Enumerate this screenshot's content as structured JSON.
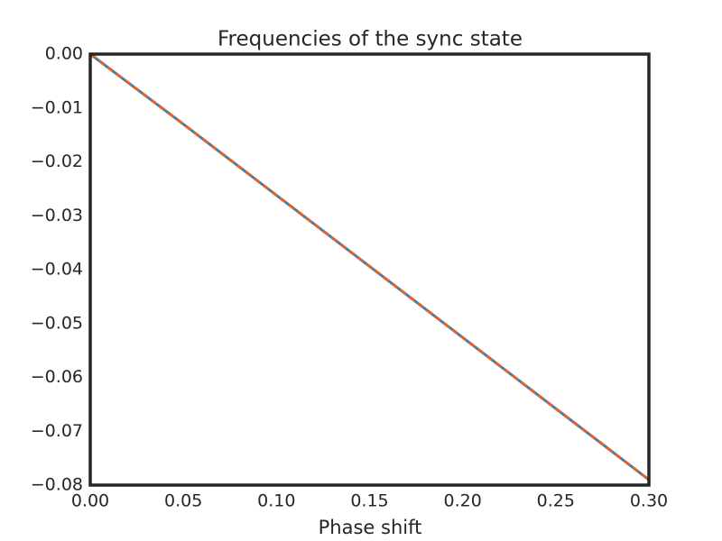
{
  "chart_data": {
    "type": "line",
    "title": "Frequencies of the sync state",
    "xlabel": "Phase shift",
    "x": [
      0,
      0.05,
      0.1,
      0.15,
      0.2,
      0.25,
      0.3
    ],
    "series": [
      {
        "color": "#2a87bd",
        "linestyle": "solid",
        "values": [
          0,
          -0.013,
          -0.0262,
          -0.0394,
          -0.0526,
          -0.0658,
          -0.079
        ]
      },
      {
        "color": "#e5602a",
        "linestyle": "dashed",
        "values": [
          0,
          -0.013,
          -0.0262,
          -0.0394,
          -0.0526,
          -0.0658,
          -0.079
        ]
      }
    ],
    "xlim": [
      0,
      0.3
    ],
    "xticks": [
      {
        "value": 0,
        "label": "0.00"
      },
      0.05,
      {
        "value": 0.1,
        "label": "0.10"
      },
      0.15,
      {
        "value": 0.2,
        "label": "0.20"
      },
      0.25,
      {
        "value": 0.3,
        "label": "0.30"
      }
    ],
    "ylim": [
      -0.08,
      0
    ],
    "yticks": [
      {
        "value": 0,
        "label": "0.00"
      },
      {
        "value": -0.01,
        "label": "−0.01"
      },
      {
        "value": -0.02,
        "label": "−0.02"
      },
      {
        "value": -0.03,
        "label": "−0.03"
      },
      {
        "value": -0.04,
        "label": "−0.04"
      },
      {
        "value": -0.05,
        "label": "−0.05"
      },
      {
        "value": -0.06,
        "label": "−0.06"
      },
      {
        "value": -0.07,
        "label": "−0.07"
      },
      {
        "value": -0.08,
        "label": "−0.08"
      }
    ],
    "grid": false
  }
}
